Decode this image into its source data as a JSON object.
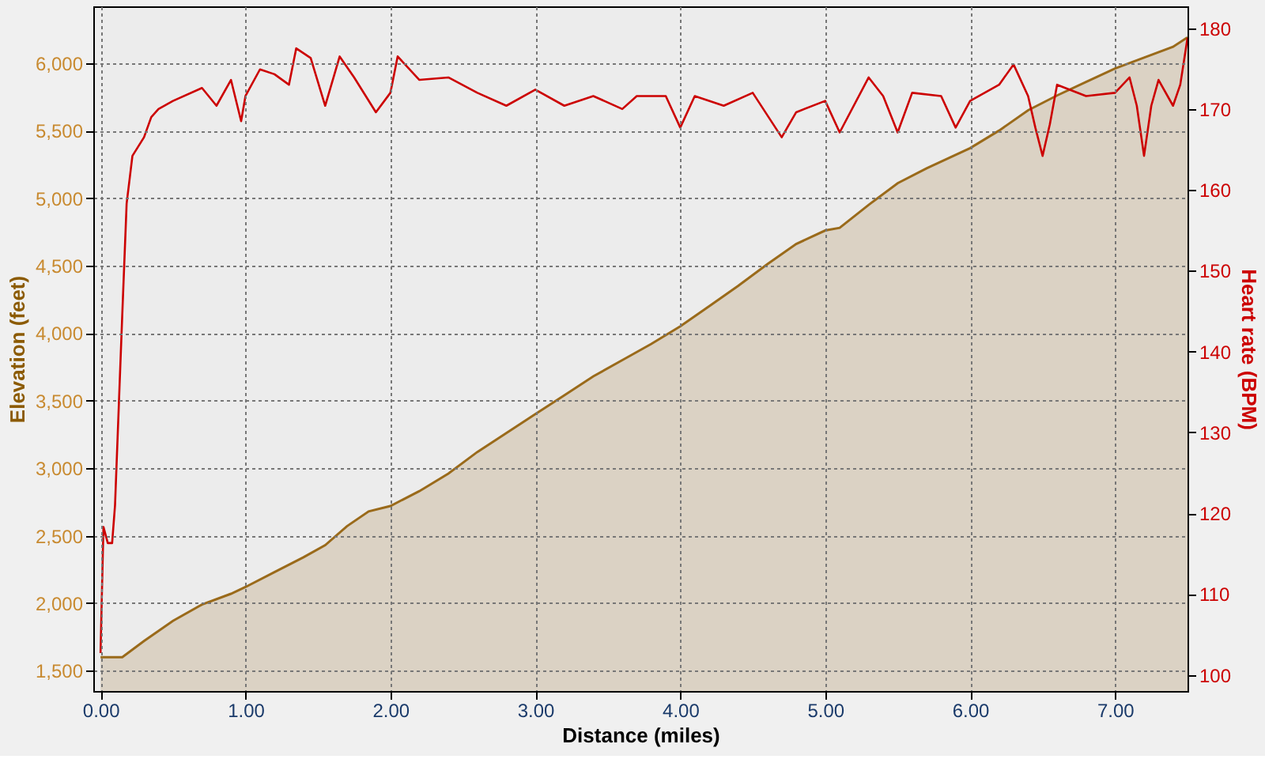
{
  "chart_data": {
    "type": "area",
    "xlabel": "Distance (miles)",
    "ylabel": "Elevation (feet)",
    "y2label": "Heart rate (BPM)",
    "xlim": [
      -0.05,
      7.5
    ],
    "ylim": [
      1350,
      6420
    ],
    "y2lim": [
      98,
      182.7
    ],
    "xticks": [
      {
        "value": 0,
        "label": "0.00"
      },
      {
        "value": 1,
        "label": "1.00"
      },
      {
        "value": 2,
        "label": "2.00"
      },
      {
        "value": 3,
        "label": "3.00"
      },
      {
        "value": 4,
        "label": "4.00"
      },
      {
        "value": 5,
        "label": "5.00"
      },
      {
        "value": 6,
        "label": "6.00"
      },
      {
        "value": 7,
        "label": "7.00"
      }
    ],
    "yticks": [
      {
        "value": 1500,
        "label": "1,500"
      },
      {
        "value": 2000,
        "label": "2,000"
      },
      {
        "value": 2500,
        "label": "2,500"
      },
      {
        "value": 3000,
        "label": "3,000"
      },
      {
        "value": 3500,
        "label": "3,500"
      },
      {
        "value": 4000,
        "label": "4,000"
      },
      {
        "value": 4500,
        "label": "4,500"
      },
      {
        "value": 5000,
        "label": "5,000"
      },
      {
        "value": 5500,
        "label": "5,500"
      },
      {
        "value": 6000,
        "label": "6,000"
      }
    ],
    "y2ticks": [
      100,
      110,
      120,
      130,
      140,
      150,
      160,
      170,
      180
    ],
    "grid": true,
    "series": [
      {
        "color": "#9a6a1a",
        "x": [
          0,
          0.15,
          0.3,
          0.5,
          0.7,
          0.9,
          1.0,
          1.2,
          1.4,
          1.55,
          1.7,
          1.85,
          2.0,
          2.2,
          2.4,
          2.6,
          2.8,
          3.0,
          3.2,
          3.4,
          3.6,
          3.8,
          4.0,
          4.2,
          4.4,
          4.6,
          4.8,
          5.0,
          5.1,
          5.3,
          5.5,
          5.7,
          5.9,
          6.0,
          6.2,
          6.4,
          6.6,
          6.8,
          7.0,
          7.2,
          7.4,
          7.5
        ],
        "values": [
          1600,
          1600,
          1720,
          1870,
          1990,
          2070,
          2120,
          2230,
          2340,
          2430,
          2570,
          2680,
          2720,
          2830,
          2960,
          3120,
          3260,
          3400,
          3540,
          3680,
          3800,
          3920,
          4050,
          4200,
          4350,
          4510,
          4660,
          4760,
          4780,
          4950,
          5110,
          5220,
          5320,
          5370,
          5500,
          5650,
          5760,
          5860,
          5960,
          6040,
          6120,
          6190
        ]
      },
      {
        "type": "line",
        "axis": "y2",
        "color": "#cc0000",
        "x": [
          0,
          0.02,
          0.05,
          0.08,
          0.1,
          0.15,
          0.18,
          0.22,
          0.3,
          0.35,
          0.4,
          0.5,
          0.7,
          0.8,
          0.9,
          0.97,
          1.0,
          1.1,
          1.2,
          1.3,
          1.35,
          1.45,
          1.55,
          1.65,
          1.75,
          1.9,
          2.0,
          2.05,
          2.2,
          2.4,
          2.6,
          2.8,
          3.0,
          3.2,
          3.4,
          3.6,
          3.7,
          3.9,
          4.0,
          4.1,
          4.3,
          4.5,
          4.7,
          4.8,
          5.0,
          5.1,
          5.3,
          5.4,
          5.5,
          5.6,
          5.8,
          5.9,
          6.0,
          6.2,
          6.3,
          6.4,
          6.45,
          6.5,
          6.55,
          6.6,
          6.8,
          7.0,
          7.1,
          7.15,
          7.2,
          7.25,
          7.3,
          7.4,
          7.45,
          7.5
        ],
        "values": [
          102.7,
          118.3,
          116.3,
          116.3,
          121,
          144.6,
          158.3,
          164.2,
          166.5,
          169,
          170,
          171,
          172.6,
          170.4,
          173.6,
          168.5,
          171.6,
          174.9,
          174.3,
          173,
          177.5,
          176.3,
          170.4,
          176.5,
          173.9,
          169.6,
          172,
          176.5,
          173.6,
          173.9,
          172,
          170.4,
          172.4,
          170.4,
          171.6,
          170,
          171.6,
          171.6,
          167.7,
          171.6,
          170.4,
          172,
          166.5,
          169.6,
          171,
          167.1,
          173.9,
          171.6,
          167.1,
          172,
          171.6,
          167.7,
          171,
          173,
          175.5,
          171.6,
          167.7,
          164.2,
          168.1,
          173,
          171.6,
          172,
          173.9,
          170.4,
          164.2,
          170.4,
          173.6,
          170.4,
          173,
          178.8
        ]
      }
    ]
  }
}
